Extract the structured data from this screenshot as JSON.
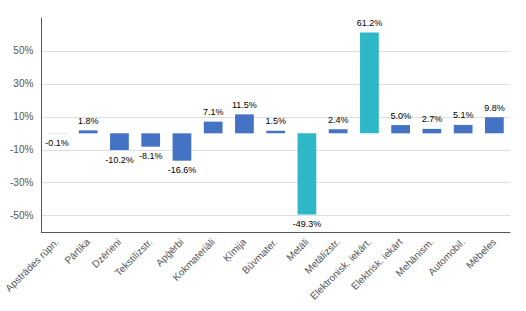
{
  "chart_data": {
    "type": "bar",
    "categories": [
      "Apstrādes rūpn.",
      "Pārtika",
      "Dzērieni",
      "Tekstilizstr.",
      "Apģērbi",
      "Kokmateriāli",
      "Ķīmija",
      "Būvmater.",
      "Metāli",
      "Metālizstr.",
      "Elektronisk. iekārt.",
      "Elektrisk. iekārt",
      "Mehānism.",
      "Automobil.",
      "Mēbeles"
    ],
    "values": [
      -0.1,
      1.8,
      -10.2,
      -8.1,
      -16.6,
      7.1,
      11.5,
      1.5,
      -49.3,
      2.4,
      61.2,
      5.0,
      2.7,
      5.1,
      9.8
    ],
    "value_labels": [
      "-0.1%",
      "1.8%",
      "-10.2%",
      "-8.1%",
      "-16.6%",
      "7.1%",
      "11.5%",
      "1.5%",
      "-49.3%",
      "2.4%",
      "61.2%",
      "5.0%",
      "2.7%",
      "5.1%",
      "9.8%"
    ],
    "colors": [
      "#4472c4",
      "#4472c4",
      "#4472c4",
      "#4472c4",
      "#4472c4",
      "#4472c4",
      "#4472c4",
      "#4472c4",
      "#2eb8c7",
      "#4472c4",
      "#2eb8c7",
      "#4472c4",
      "#4472c4",
      "#4472c4",
      "#4472c4"
    ],
    "ylim": [
      -60,
      70
    ],
    "yticks": [
      {
        "value": -50,
        "label": "-50%"
      },
      {
        "value": -30,
        "label": "-30%"
      },
      {
        "value": -10,
        "label": "-10%"
      },
      {
        "value": 10,
        "label": "10%"
      },
      {
        "value": 30,
        "label": "30%"
      },
      {
        "value": 50,
        "label": "50%"
      }
    ],
    "grid": true,
    "data_labels": true
  }
}
